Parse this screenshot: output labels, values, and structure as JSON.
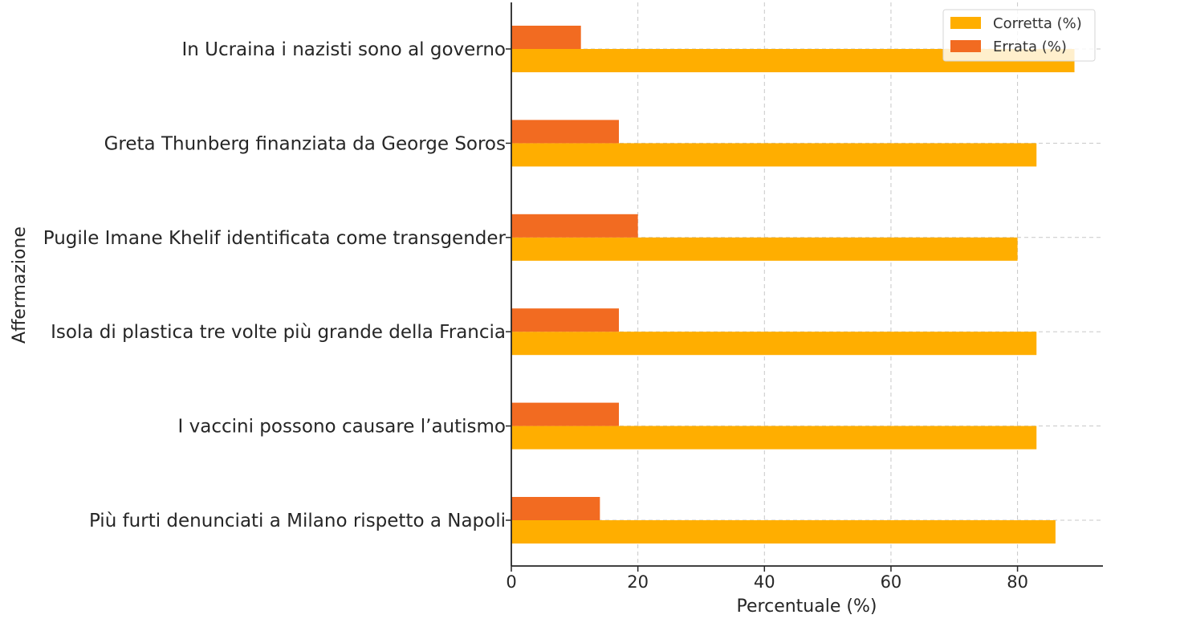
{
  "chart_data": {
    "type": "bar",
    "orientation": "horizontal",
    "categories": [
      "In Ucraina i nazisti sono al governo",
      "Greta Thunberg finanziata da George Soros",
      "Pugile Imane Khelif identificata come transgender",
      "Isola di plastica tre volte più grande della Francia",
      "I vaccini possono causare l’autismo",
      "Più furti denunciati a Milano rispetto a Napoli"
    ],
    "series": [
      {
        "name": "Corretta (%)",
        "color": "#FFAE00",
        "values": [
          89,
          83,
          80,
          83,
          83,
          86
        ]
      },
      {
        "name": "Errata (%)",
        "color": "#F26B21",
        "values": [
          11,
          17,
          20,
          17,
          17,
          14
        ]
      }
    ],
    "xlabel": "Percentuale (%)",
    "ylabel": "Affermazione",
    "xlim": [
      0,
      93.5
    ],
    "xticks": [
      0,
      20,
      40,
      60,
      80
    ],
    "grid": true,
    "legend_position": "top-right"
  }
}
